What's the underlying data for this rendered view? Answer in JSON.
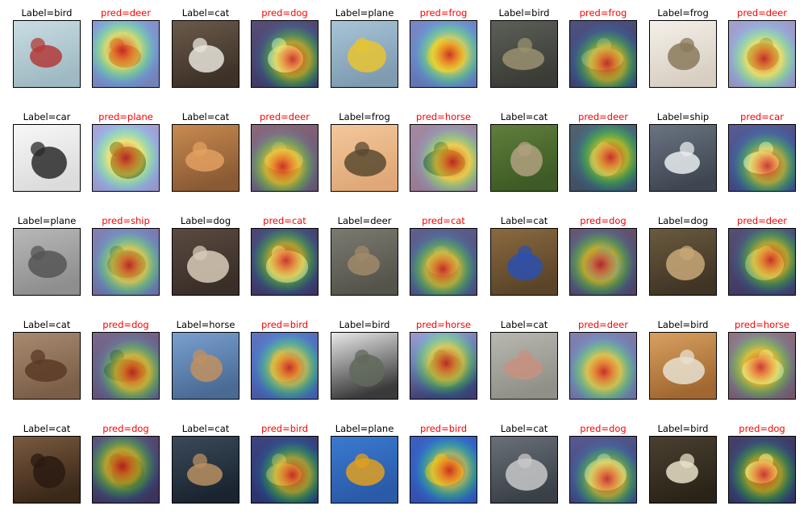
{
  "figure": {
    "rows": [
      {
        "pairs": [
          {
            "label": "Label=bird",
            "pred": "pred=deer",
            "subject": "bird-on-branch",
            "bg": [
              "#c9dde3",
              "#9fb9c2"
            ],
            "fg": "#b33a3a"
          },
          {
            "label": "Label=cat",
            "pred": "pred=dog",
            "subject": "cat-lying",
            "bg": [
              "#6b5a4a",
              "#3d3128"
            ],
            "fg": "#e8e4dc"
          },
          {
            "label": "Label=plane",
            "pred": "pred=frog",
            "subject": "toy-plane",
            "bg": [
              "#a8c4d8",
              "#7f9bb0"
            ],
            "fg": "#e7c431"
          },
          {
            "label": "Label=bird",
            "pred": "pred=frog",
            "subject": "bird-in-grass",
            "bg": [
              "#5c6058",
              "#3a3c35"
            ],
            "fg": "#9a9070"
          },
          {
            "label": "Label=frog",
            "pred": "pred=deer",
            "subject": "frog-closeup",
            "bg": [
              "#f4f0ea",
              "#d8cfc2"
            ],
            "fg": "#8a7a5a"
          }
        ]
      },
      {
        "pairs": [
          {
            "label": "Label=car",
            "pred": "pred=plane",
            "subject": "car-on-lift",
            "bg": [
              "#f7f7f7",
              "#dcdcdc"
            ],
            "fg": "#2a2a2a"
          },
          {
            "label": "Label=cat",
            "pred": "pred=deer",
            "subject": "orange-cat",
            "bg": [
              "#c88a50",
              "#8a5a34"
            ],
            "fg": "#e2a060"
          },
          {
            "label": "Label=frog",
            "pred": "pred=horse",
            "subject": "frog-sitting",
            "bg": [
              "#f3c79a",
              "#e0a878"
            ],
            "fg": "#5a4a30"
          },
          {
            "label": "Label=cat",
            "pred": "pred=deer",
            "subject": "cat-in-grass",
            "bg": [
              "#5f7f3c",
              "#3e5a25"
            ],
            "fg": "#b0a080"
          },
          {
            "label": "Label=ship",
            "pred": "pred=car",
            "subject": "white-boat",
            "bg": [
              "#6a7480",
              "#3e4652"
            ],
            "fg": "#e8ecef"
          }
        ]
      },
      {
        "pairs": [
          {
            "label": "Label=plane",
            "pred": "pred=ship",
            "subject": "grey-plane",
            "bg": [
              "#b8b8b8",
              "#8e8e8e"
            ],
            "fg": "#555555"
          },
          {
            "label": "Label=dog",
            "pred": "pred=cat",
            "subject": "small-dog",
            "bg": [
              "#5a4a40",
              "#3a2e28"
            ],
            "fg": "#d8cbb8"
          },
          {
            "label": "Label=deer",
            "pred": "pred=cat",
            "subject": "deer-lying",
            "bg": [
              "#7b7a70",
              "#55544a"
            ],
            "fg": "#a08a6a"
          },
          {
            "label": "Label=cat",
            "pred": "pred=dog",
            "subject": "toy-car",
            "bg": [
              "#8a6a40",
              "#5a4428"
            ],
            "fg": "#2a50b0"
          },
          {
            "label": "Label=dog",
            "pred": "pred=deer",
            "subject": "dog-standing",
            "bg": [
              "#6a5a40",
              "#403424"
            ],
            "fg": "#c8a878"
          }
        ]
      },
      {
        "pairs": [
          {
            "label": "Label=cat",
            "pred": "pred=dog",
            "subject": "brown-cat",
            "bg": [
              "#a88a70",
              "#7a5e48"
            ],
            "fg": "#5a3a26"
          },
          {
            "label": "Label=horse",
            "pred": "pred=bird",
            "subject": "rearing-horse",
            "bg": [
              "#7aa0d0",
              "#4a6a94"
            ],
            "fg": "#c09060"
          },
          {
            "label": "Label=bird",
            "pred": "pred=horse",
            "subject": "ostrich",
            "bg": [
              "#e8e8e8",
              "#3a3a3a"
            ],
            "fg": "#606a5a"
          },
          {
            "label": "Label=cat",
            "pred": "pred=deer",
            "subject": "cat-face",
            "bg": [
              "#b8b8b0",
              "#909088"
            ],
            "fg": "#c89080"
          },
          {
            "label": "Label=bird",
            "pred": "pred=horse",
            "subject": "bird-flying",
            "bg": [
              "#d8a060",
              "#a06830"
            ],
            "fg": "#e8e0d0"
          }
        ]
      },
      {
        "pairs": [
          {
            "label": "Label=cat",
            "pred": "pred=dog",
            "subject": "dark-cat",
            "bg": [
              "#7a5a40",
              "#3a2818"
            ],
            "fg": "#2a1a10"
          },
          {
            "label": "Label=cat",
            "pred": "pred=bird",
            "subject": "cat-window",
            "bg": [
              "#3a4a5a",
              "#1a2430"
            ],
            "fg": "#b89060"
          },
          {
            "label": "Label=plane",
            "pred": "pred=bird",
            "subject": "yellow-plane",
            "bg": [
              "#3a7ad0",
              "#2a5aa8"
            ],
            "fg": "#e0a020"
          },
          {
            "label": "Label=cat",
            "pred": "pred=dog",
            "subject": "grey-cat-face",
            "bg": [
              "#6a7078",
              "#3a4048"
            ],
            "fg": "#c8c8c8"
          },
          {
            "label": "Label=bird",
            "pred": "pred=dog",
            "subject": "owl",
            "bg": [
              "#4a4030",
              "#2a2418"
            ],
            "fg": "#e8e0c8"
          }
        ]
      }
    ]
  },
  "colors": {
    "label_text": "#000000",
    "pred_text": "#ff0000",
    "border": "#000000"
  }
}
